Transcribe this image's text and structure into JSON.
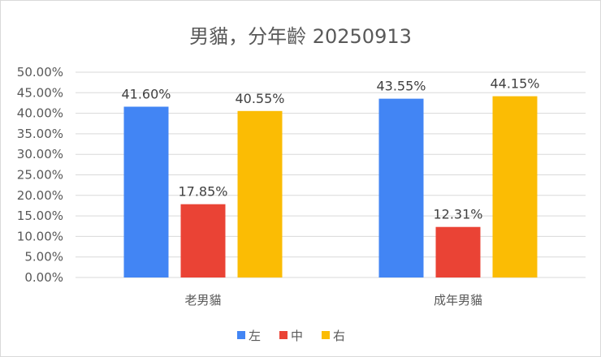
{
  "chart_data": {
    "type": "bar",
    "title": "男貓，分年齡 20250913",
    "xlabel": "",
    "ylabel": "",
    "categories": [
      "老男貓",
      "成年男貓"
    ],
    "series": [
      {
        "name": "左",
        "color": "#4285f4",
        "values": [
          41.6,
          43.55
        ],
        "labels": [
          "41.60%",
          "43.55%"
        ]
      },
      {
        "name": "中",
        "color": "#ea4335",
        "values": [
          17.85,
          12.31
        ],
        "labels": [
          "17.85%",
          "12.31%"
        ]
      },
      {
        "name": "右",
        "color": "#fbbc04",
        "values": [
          40.55,
          44.15
        ],
        "labels": [
          "40.55%",
          "44.15%"
        ]
      }
    ],
    "ylim": [
      0,
      50
    ],
    "yticks": [
      0,
      5,
      10,
      15,
      20,
      25,
      30,
      35,
      40,
      45,
      50
    ],
    "ytick_labels": [
      "0.00%",
      "5.00%",
      "10.00%",
      "15.00%",
      "20.00%",
      "25.00%",
      "30.00%",
      "35.00%",
      "40.00%",
      "45.00%",
      "50.00%"
    ],
    "grid": true,
    "legend_position": "bottom"
  }
}
